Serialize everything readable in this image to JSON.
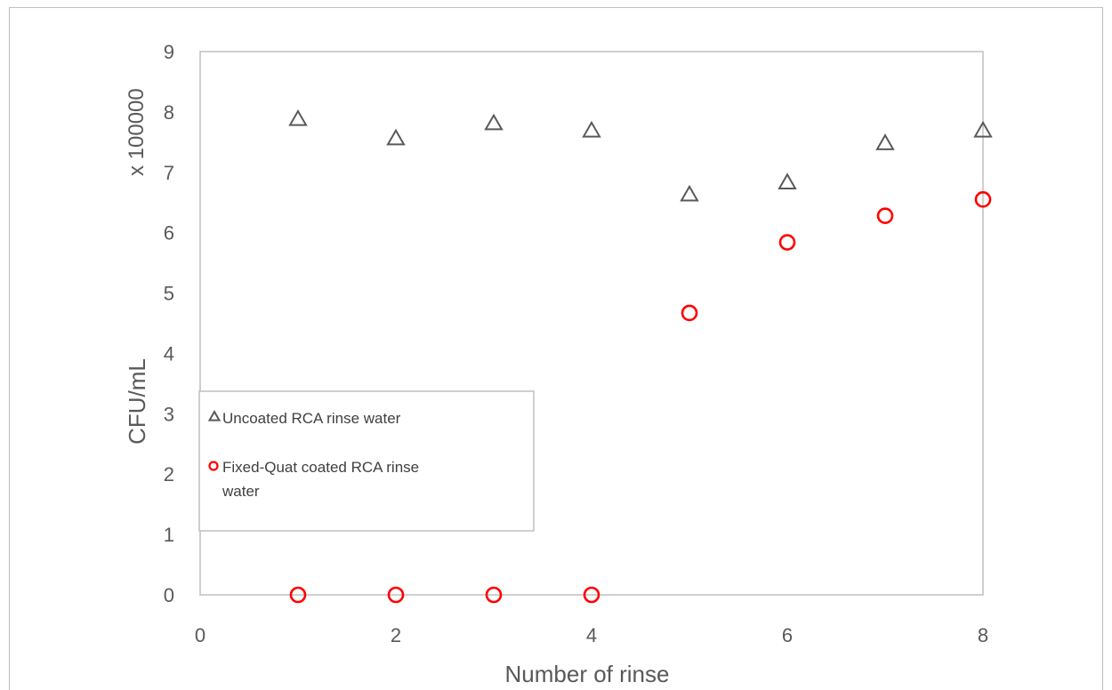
{
  "chart_data": {
    "type": "scatter",
    "xlabel": "Number of rinse",
    "ylabel": "CFU/mL",
    "y_multiplier_label": "x 100000",
    "xlim": [
      0,
      8
    ],
    "ylim": [
      0,
      9
    ],
    "x_ticks": [
      "0",
      "2",
      "4",
      "6",
      "8"
    ],
    "y_ticks": [
      "0",
      "1",
      "2",
      "3",
      "4",
      "5",
      "6",
      "7",
      "8",
      "9"
    ],
    "grid": false,
    "legend_position": "lower-left",
    "series": [
      {
        "name": "Uncoated RCA rinse water",
        "marker": "triangle",
        "color": "#595959",
        "x": [
          1,
          2,
          3,
          4,
          5,
          6,
          7,
          8
        ],
        "y": [
          7.87,
          7.55,
          7.8,
          7.68,
          6.62,
          6.82,
          7.47,
          7.68
        ]
      },
      {
        "name": "Fixed-Quat coated RCA rinse water",
        "name_lines": [
          "Fixed-Quat coated RCA rinse",
          "water"
        ],
        "marker": "circle",
        "color": "#ff0000",
        "x": [
          1,
          2,
          3,
          4,
          5,
          6,
          7,
          8
        ],
        "y": [
          0,
          0,
          0,
          0,
          4.67,
          5.84,
          6.28,
          6.55
        ]
      }
    ]
  }
}
